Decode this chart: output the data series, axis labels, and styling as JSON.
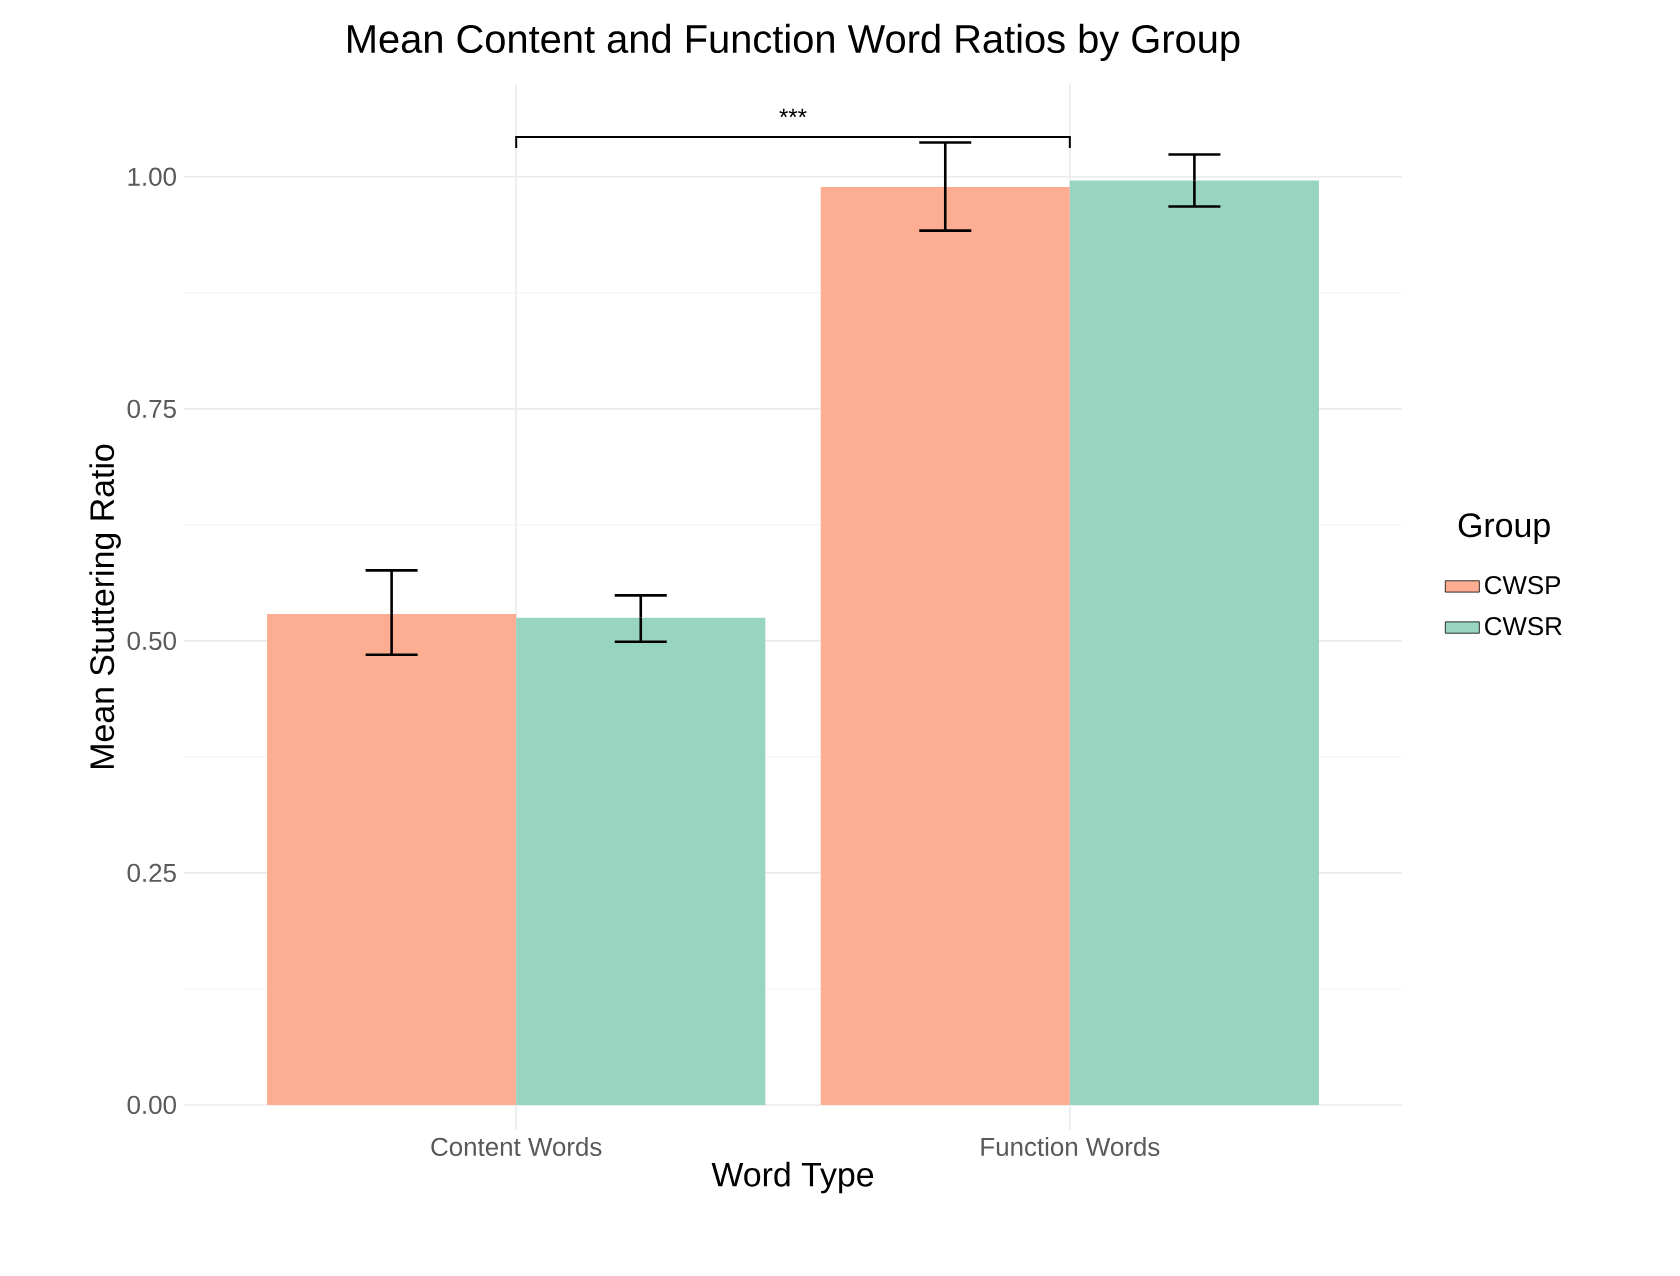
{
  "chart_data": {
    "type": "bar",
    "title": "Mean Content and Function Word Ratios by Group",
    "xlabel": "Word Type",
    "ylabel": "Mean Stuttering Ratio",
    "legend_title": "Group",
    "categories": [
      "Content Words",
      "Function Words"
    ],
    "series": [
      {
        "name": "CWSP",
        "color": "#fdae92",
        "values": [
          0.529,
          0.989
        ],
        "errors": [
          [
            0.485,
            0.576
          ],
          [
            0.942,
            1.037
          ]
        ]
      },
      {
        "name": "CWSR",
        "color": "#98d5c1",
        "values": [
          0.525,
          0.996
        ],
        "errors": [
          [
            0.499,
            0.549
          ],
          [
            0.968,
            1.024
          ]
        ]
      }
    ],
    "ylim": [
      -0.027,
      1.1
    ],
    "yticks": [
      {
        "value": 0,
        "label": "0.00"
      },
      {
        "value": 0.25,
        "label": "0.25"
      },
      {
        "value": 0.5,
        "label": "0.50"
      },
      {
        "value": 0.75,
        "label": "0.75"
      },
      {
        "value": 1,
        "label": "1.00"
      }
    ],
    "annotations": [
      "***"
    ],
    "grid": true,
    "legend": "right"
  }
}
